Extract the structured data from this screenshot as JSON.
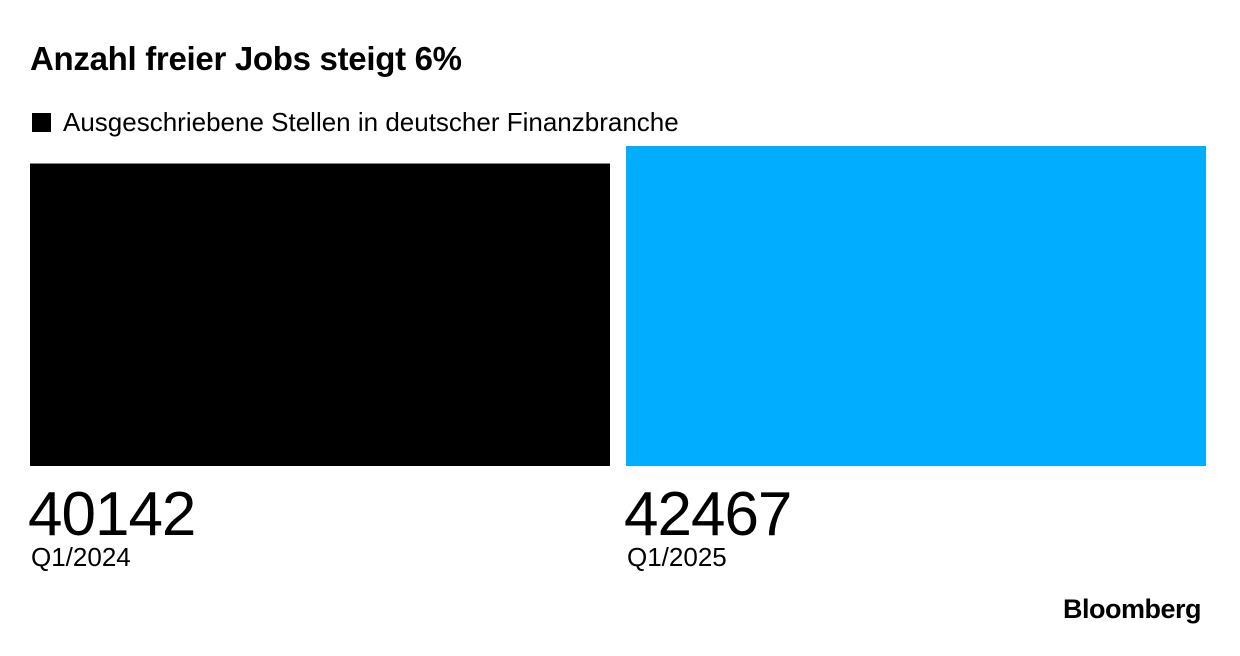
{
  "chart_data": {
    "type": "bar",
    "title": "Anzahl freier Jobs steigt 6%",
    "legend": [
      "Ausgeschriebene Stellen in deutscher Finanzbranche"
    ],
    "categories": [
      "Q1/2024",
      "Q1/2025"
    ],
    "series": [
      {
        "name": "Ausgeschriebene Stellen in deutscher Finanzbranche",
        "values": [
          40142,
          42467
        ]
      }
    ],
    "data_labels": [
      "40142",
      "42467"
    ],
    "bar_colors": [
      "#000000",
      "#00adff"
    ],
    "legend_color": "#000000",
    "legend_position": "top-left",
    "grid": false
  },
  "footer": {
    "logo_text": "Bloomberg"
  }
}
